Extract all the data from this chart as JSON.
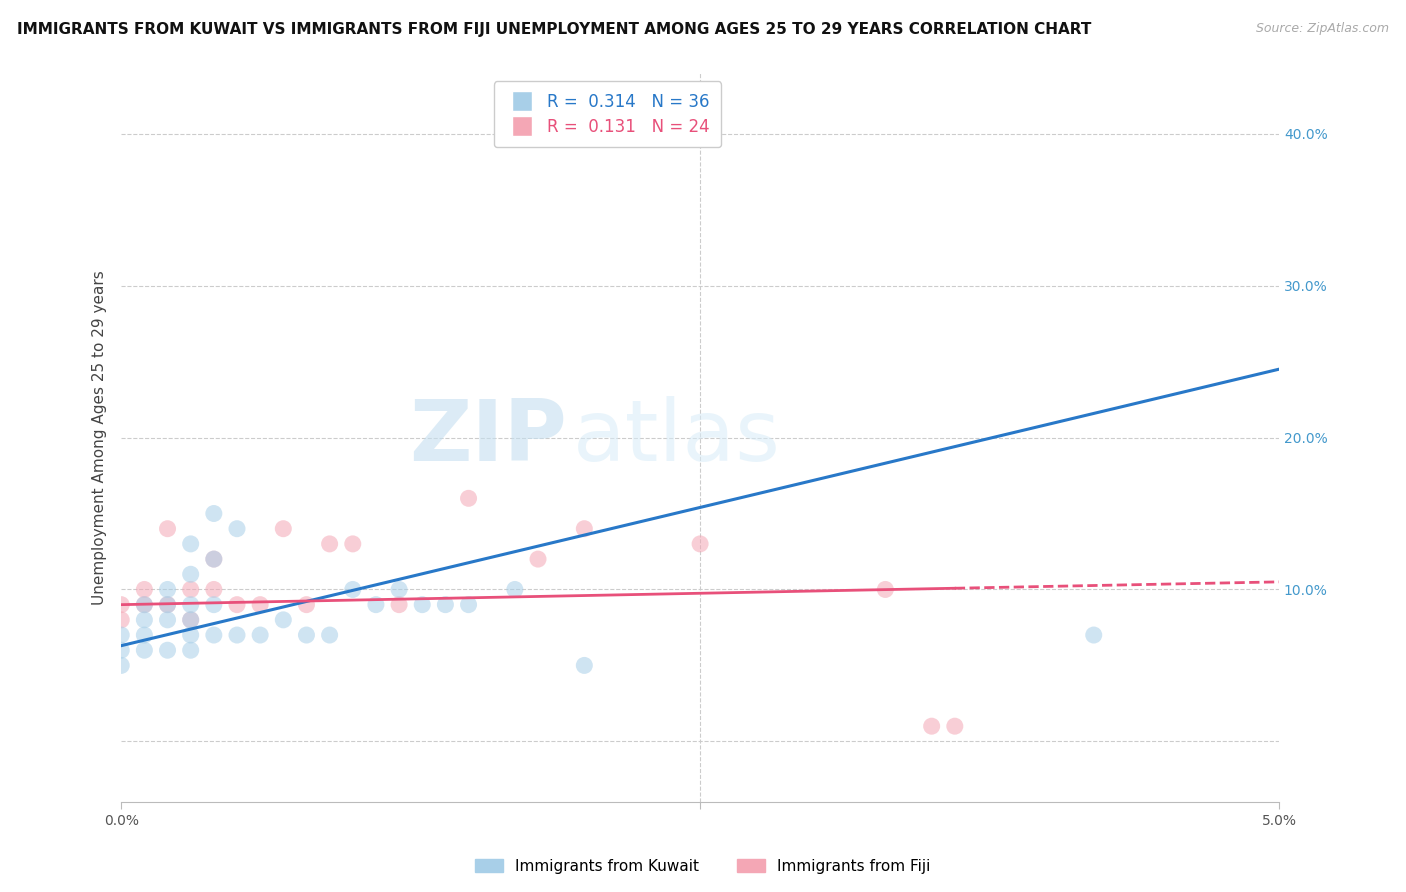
{
  "title": "IMMIGRANTS FROM KUWAIT VS IMMIGRANTS FROM FIJI UNEMPLOYMENT AMONG AGES 25 TO 29 YEARS CORRELATION CHART",
  "source": "Source: ZipAtlas.com",
  "ylabel": "Unemployment Among Ages 25 to 29 years",
  "kuwait_R": 0.314,
  "kuwait_N": 36,
  "fiji_R": 0.131,
  "fiji_N": 24,
  "kuwait_color": "#a8cfe8",
  "fiji_color": "#f4a7b5",
  "kuwait_line_color": "#2878c8",
  "fiji_line_color": "#e8507a",
  "background_color": "#ffffff",
  "grid_color": "#cccccc",
  "yticks": [
    0.0,
    0.1,
    0.2,
    0.3,
    0.4
  ],
  "ytick_labels": [
    "",
    "10.0%",
    "20.0%",
    "30.0%",
    "40.0%"
  ],
  "ytick_color": "#4499cc",
  "xlim": [
    0.0,
    0.05
  ],
  "ylim": [
    -0.04,
    0.44
  ],
  "kuwait_x": [
    0.0,
    0.0,
    0.0,
    0.001,
    0.001,
    0.001,
    0.001,
    0.002,
    0.002,
    0.002,
    0.002,
    0.003,
    0.003,
    0.003,
    0.003,
    0.003,
    0.003,
    0.004,
    0.004,
    0.004,
    0.004,
    0.005,
    0.005,
    0.006,
    0.007,
    0.008,
    0.009,
    0.01,
    0.011,
    0.012,
    0.013,
    0.014,
    0.015,
    0.017,
    0.02,
    0.042
  ],
  "kuwait_y": [
    0.07,
    0.06,
    0.05,
    0.09,
    0.08,
    0.07,
    0.06,
    0.1,
    0.09,
    0.08,
    0.06,
    0.13,
    0.11,
    0.09,
    0.08,
    0.07,
    0.06,
    0.15,
    0.12,
    0.09,
    0.07,
    0.14,
    0.07,
    0.07,
    0.08,
    0.07,
    0.07,
    0.1,
    0.09,
    0.1,
    0.09,
    0.09,
    0.09,
    0.1,
    0.05,
    0.07
  ],
  "fiji_x": [
    0.0,
    0.0,
    0.001,
    0.001,
    0.002,
    0.002,
    0.003,
    0.003,
    0.004,
    0.004,
    0.005,
    0.006,
    0.007,
    0.008,
    0.009,
    0.01,
    0.012,
    0.015,
    0.018,
    0.02,
    0.025,
    0.033,
    0.035,
    0.036
  ],
  "fiji_y": [
    0.09,
    0.08,
    0.1,
    0.09,
    0.14,
    0.09,
    0.1,
    0.08,
    0.12,
    0.1,
    0.09,
    0.09,
    0.14,
    0.09,
    0.13,
    0.13,
    0.09,
    0.16,
    0.12,
    0.14,
    0.13,
    0.1,
    0.01,
    0.01
  ],
  "watermark_zip": "ZIP",
  "watermark_atlas": "atlas",
  "title_fontsize": 11,
  "axis_label_fontsize": 11,
  "tick_fontsize": 10,
  "legend_fontsize": 12,
  "legend_R_color_kuwait": "#2878c8",
  "legend_N_color_kuwait": "#22aa22",
  "legend_R_color_fiji": "#e8507a",
  "legend_N_color_fiji": "#22aa22"
}
